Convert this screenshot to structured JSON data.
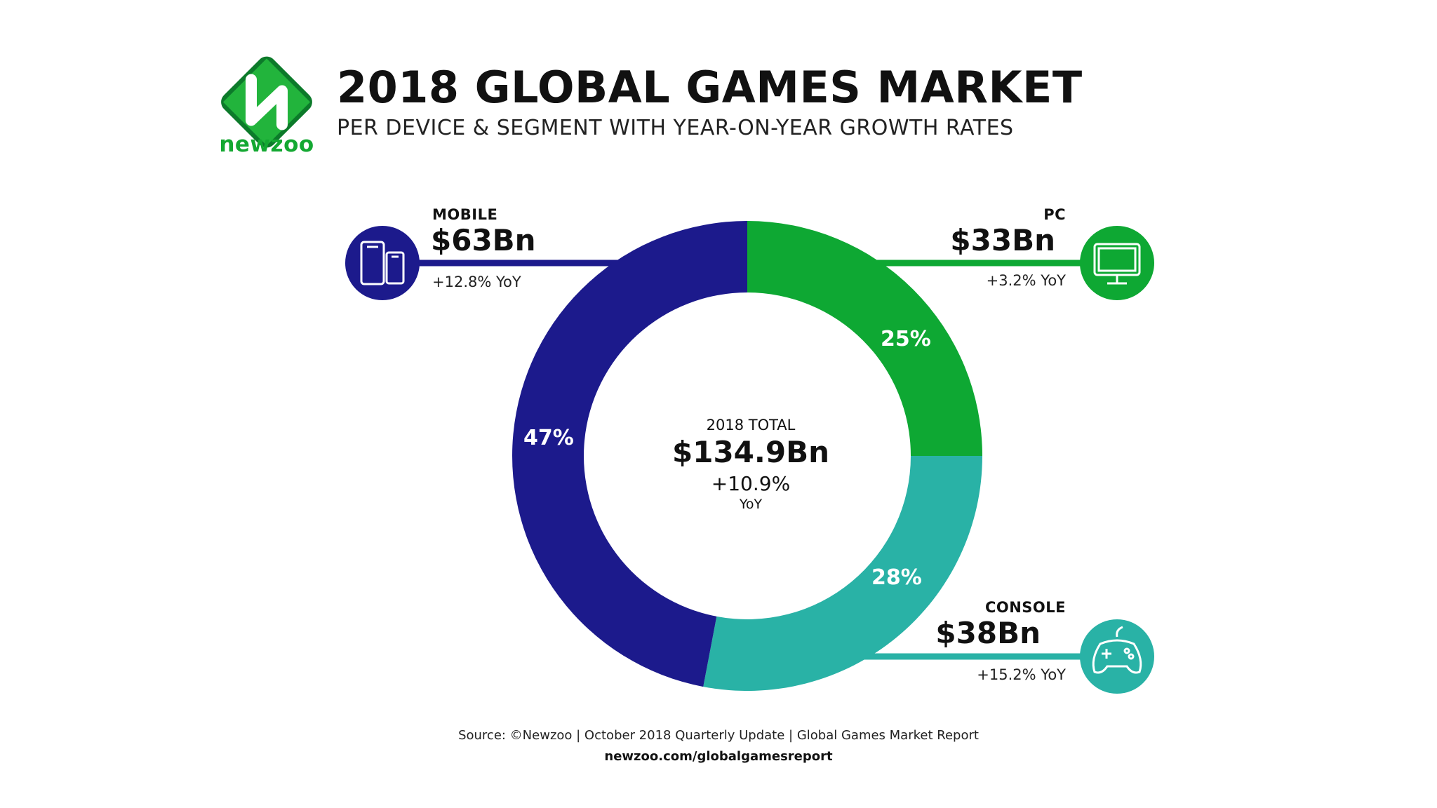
{
  "brand": {
    "logo_text": "newzoo"
  },
  "header": {
    "title": "2018 GLOBAL GAMES MARKET",
    "subtitle": "PER DEVICE & SEGMENT WITH YEAR-ON-YEAR GROWTH RATES"
  },
  "segments": {
    "mobile": {
      "label": "MOBILE",
      "value": "$63Bn",
      "growth": "+12.8% YoY",
      "share": "47%",
      "icon": "smartphone-tablet-icon"
    },
    "pc": {
      "label": "PC",
      "value": "$33Bn",
      "growth": "+3.2% YoY",
      "share": "25%",
      "icon": "monitor-icon"
    },
    "console": {
      "label": "CONSOLE",
      "value": "$38Bn",
      "growth": "+15.2% YoY",
      "share": "28%",
      "icon": "gamepad-icon"
    }
  },
  "total": {
    "label": "2018 TOTAL",
    "value": "$134.9Bn",
    "growth": "+10.9%",
    "growth_unit": "YoY"
  },
  "footer": {
    "source": "Source: ©Newzoo | October 2018 Quarterly Update | Global Games Market Report",
    "url": "newzoo.com/globalgamesreport"
  },
  "colors": {
    "mobile": "#1c1a8c",
    "pc": "#0ea833",
    "console": "#29b2a6"
  },
  "chart_data": {
    "type": "pie",
    "categories": [
      "PC",
      "Console",
      "Mobile"
    ],
    "values": [
      25,
      28,
      47
    ],
    "unit": "%"
  }
}
